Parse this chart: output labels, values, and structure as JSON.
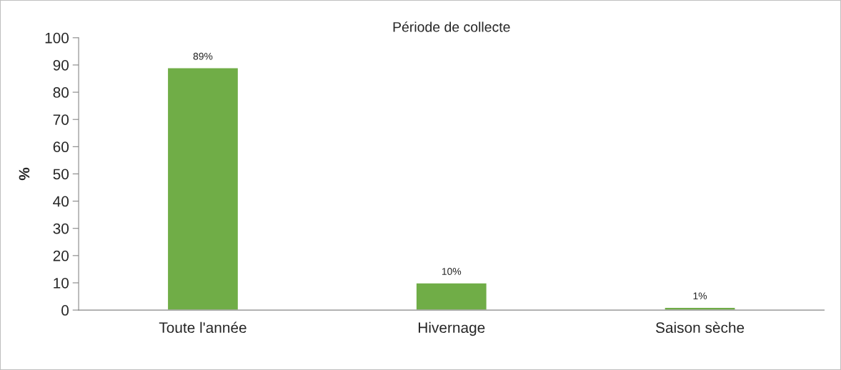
{
  "chart_data": {
    "type": "bar",
    "title": "Période de collecte",
    "ylabel": "%",
    "categories": [
      "Toute l'année",
      "Hivernage",
      "Saison sèche"
    ],
    "values": [
      89,
      10,
      1
    ],
    "color": "#70ad47",
    "value_labels": [
      "89%",
      "10%",
      "1%"
    ],
    "ylim": [
      0,
      100
    ],
    "yticks": [
      0,
      10,
      20,
      30,
      40,
      50,
      60,
      70,
      80,
      90,
      100
    ],
    "grid": false,
    "legend": false
  }
}
